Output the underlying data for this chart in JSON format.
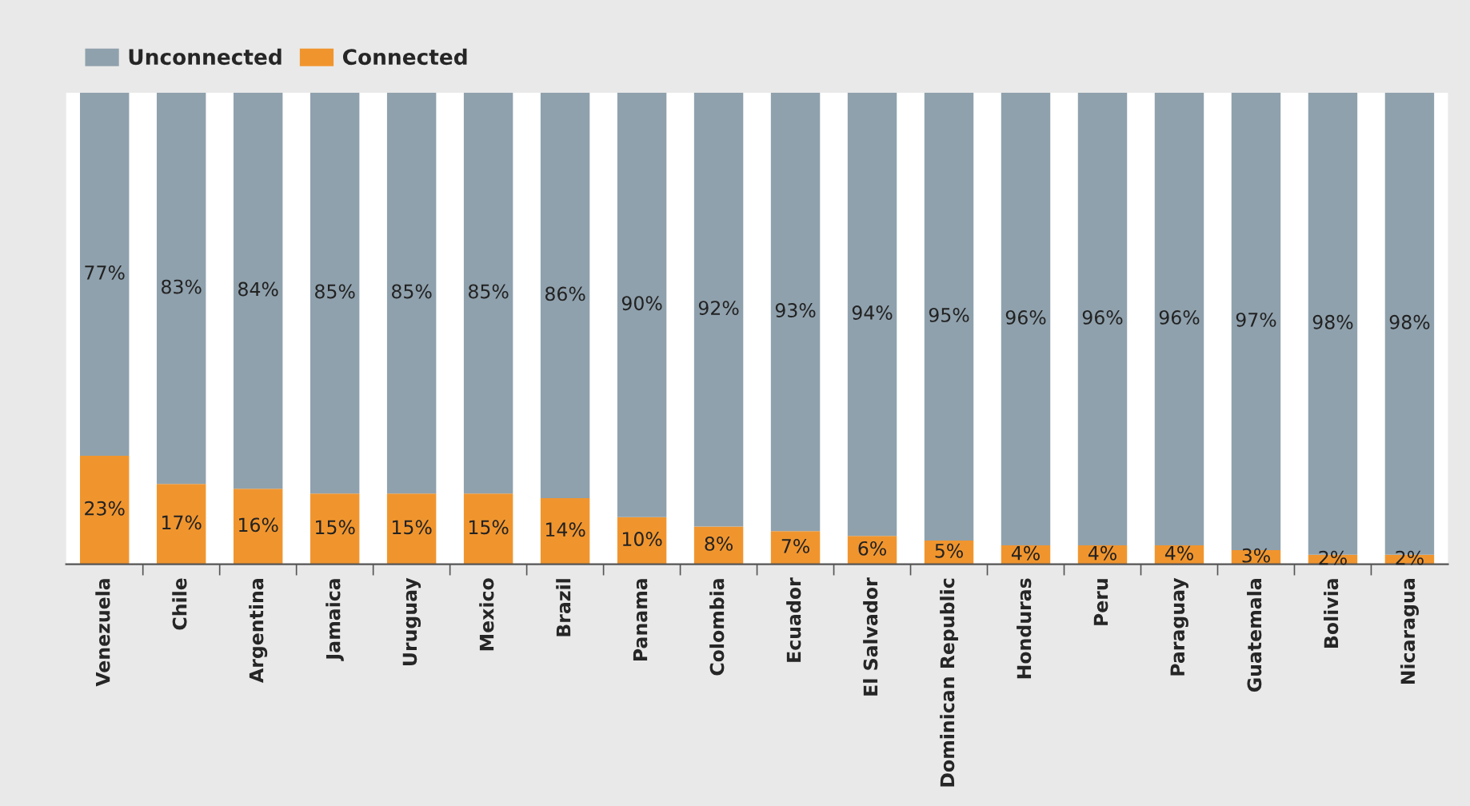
{
  "chart_data": {
    "type": "bar",
    "stacked": true,
    "legend": "top left",
    "categories": [
      "Venezuela",
      "Chile",
      "Argentina",
      "Jamaica",
      "Uruguay",
      "Mexico",
      "Brazil",
      "Panama",
      "Colombia",
      "Ecuador",
      "El Salvador",
      "Dominican Republic",
      "Honduras",
      "Peru",
      "Paraguay",
      "Guatemala",
      "Bolivia",
      "Nicaragua"
    ],
    "series": [
      {
        "name": "Connected",
        "color": "#f0952e",
        "values": [
          23,
          17,
          16,
          15,
          15,
          15,
          14,
          10,
          8,
          7,
          6,
          5,
          4,
          4,
          4,
          3,
          2,
          2
        ],
        "value_labels": [
          "23%",
          "17%",
          "16%",
          "15%",
          "15%",
          "15%",
          "14%",
          "10%",
          "8%",
          "7%",
          "6%",
          "5%",
          "4%",
          "4%",
          "4%",
          "3%",
          "2%",
          "2%"
        ]
      },
      {
        "name": "Unconnected",
        "color": "#8fa1ad",
        "values": [
          77,
          83,
          84,
          85,
          85,
          85,
          86,
          90,
          92,
          93,
          94,
          95,
          96,
          96,
          96,
          97,
          98,
          98
        ],
        "value_labels": [
          "77%",
          "83%",
          "84%",
          "85%",
          "85%",
          "85%",
          "86%",
          "90%",
          "92%",
          "93%",
          "94%",
          "95%",
          "96%",
          "96%",
          "96%",
          "97%",
          "98%",
          "98%"
        ]
      }
    ]
  }
}
